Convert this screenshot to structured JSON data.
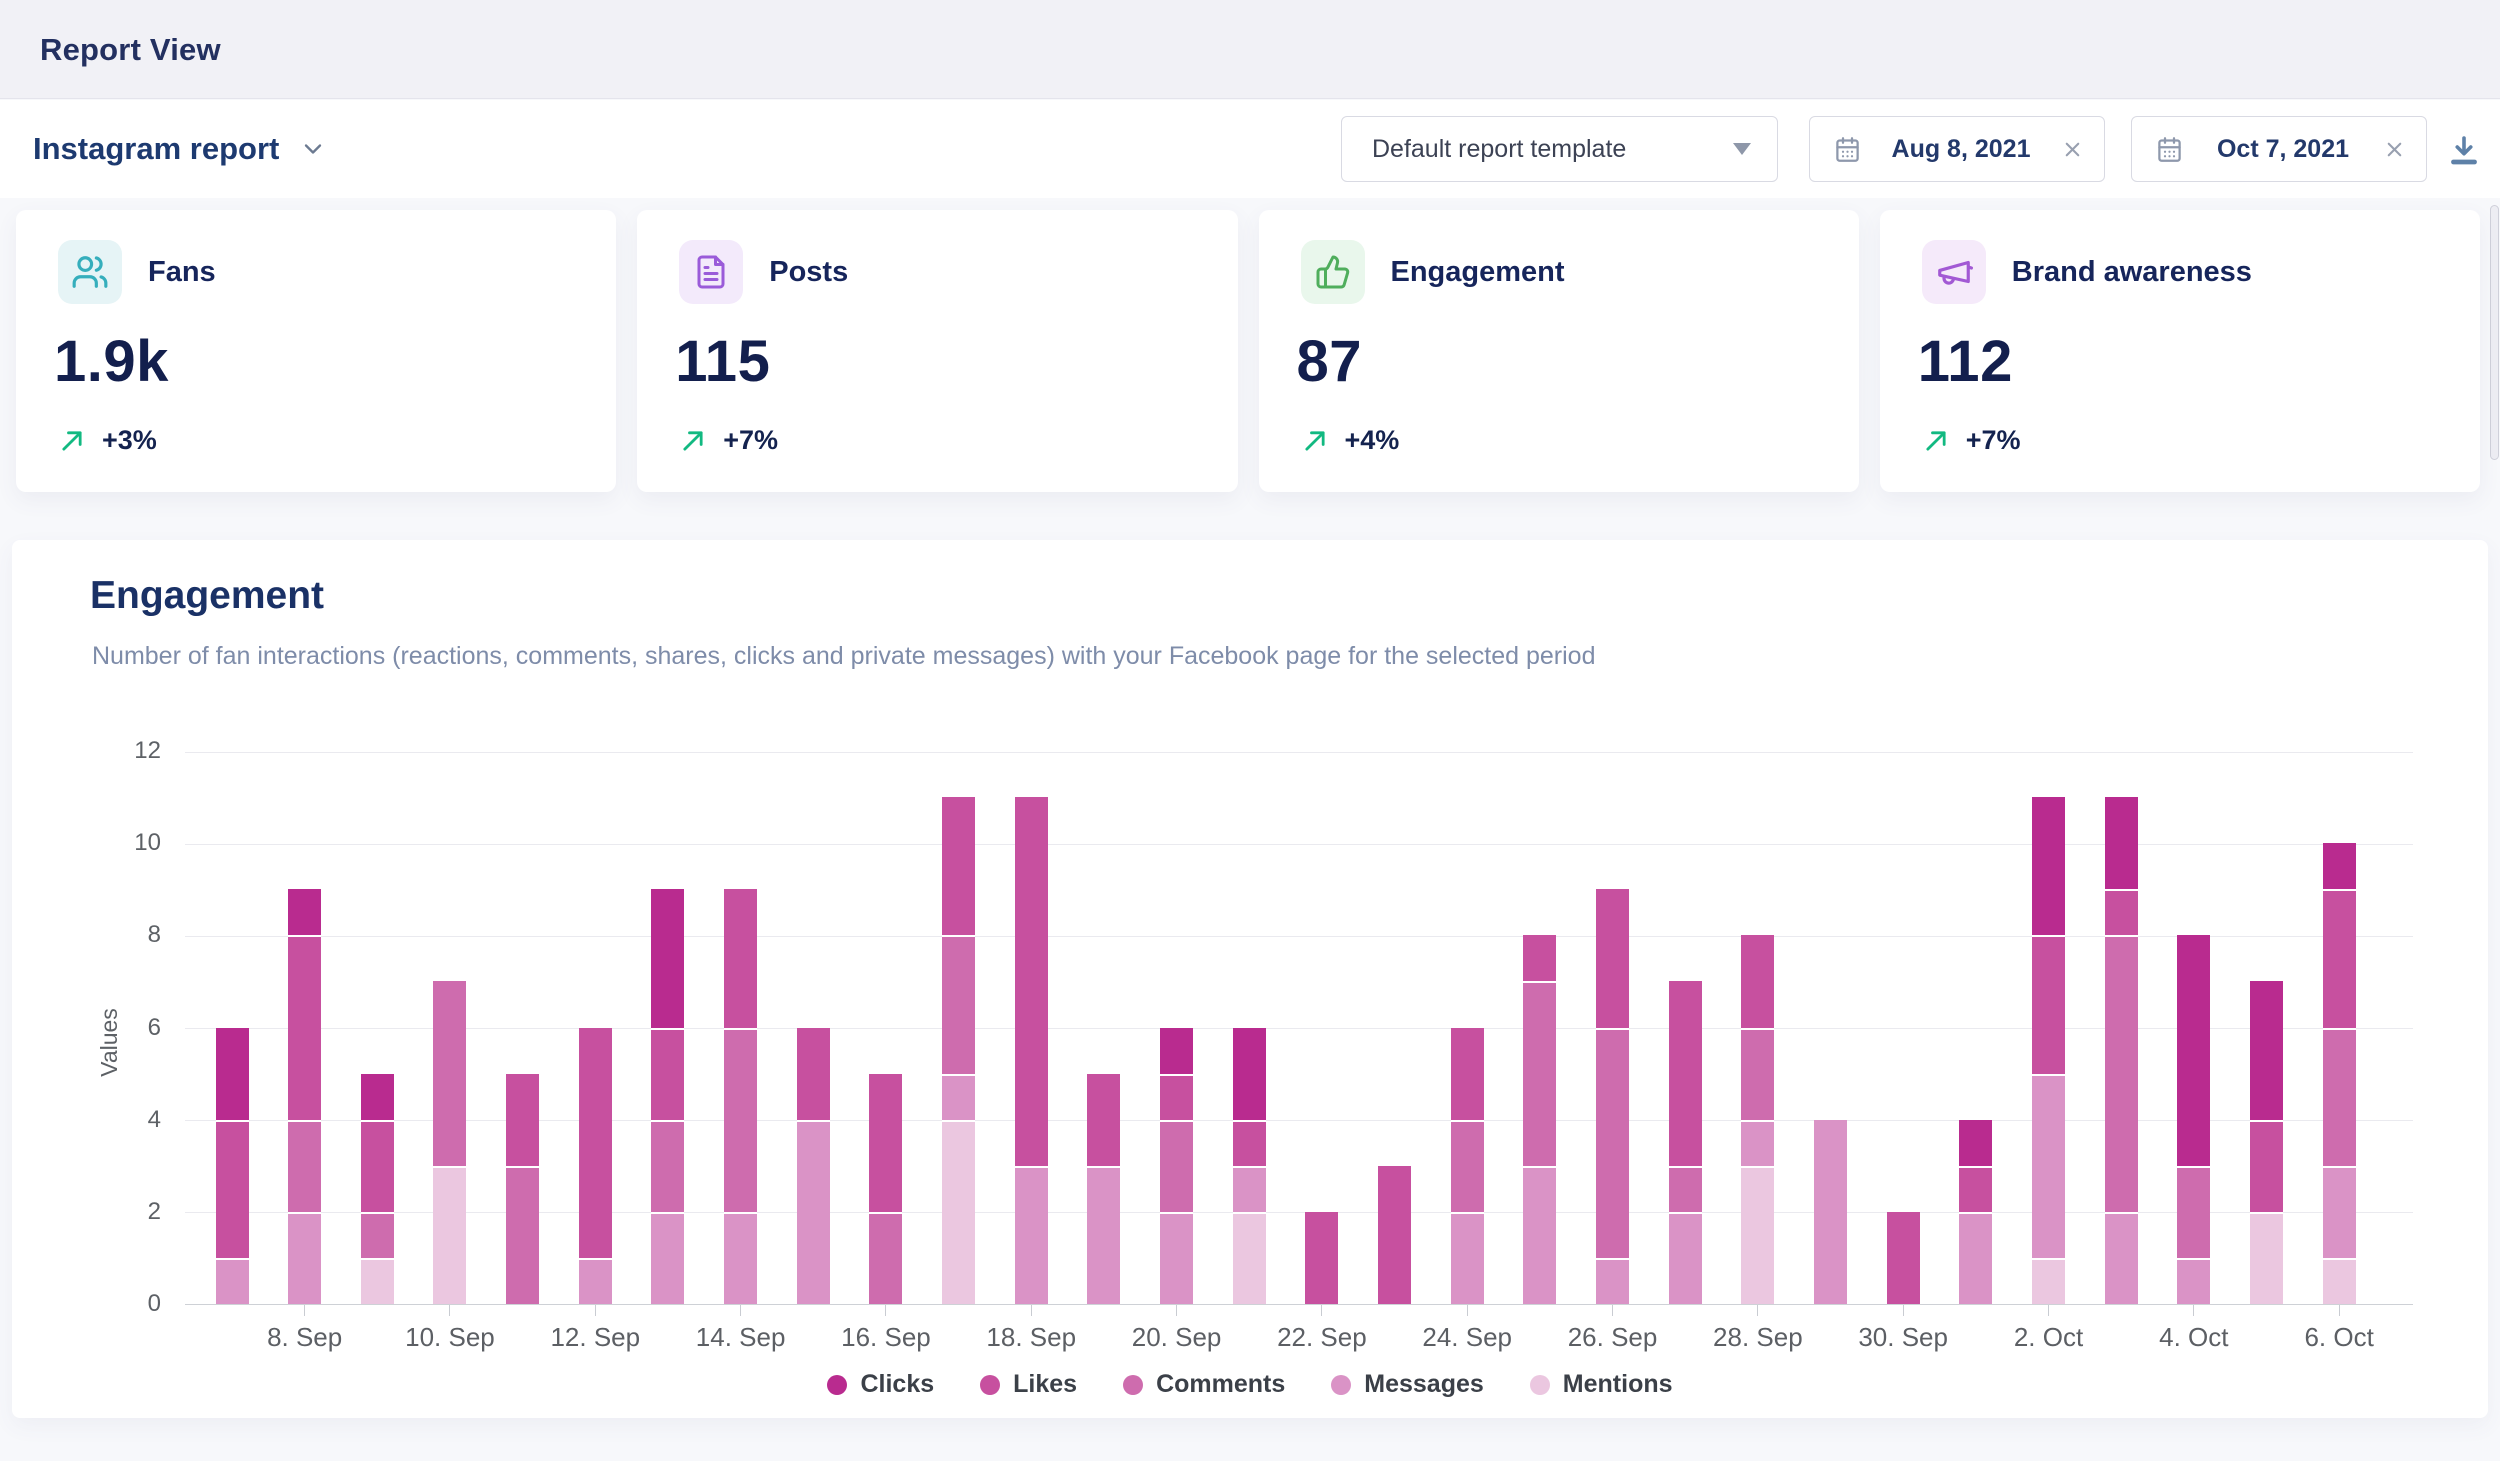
{
  "header": {
    "title": "Report View"
  },
  "toolbar": {
    "report_name": "Instagram report",
    "template_select": {
      "value": "Default report template"
    },
    "date_from": {
      "value": "Aug 8, 2021"
    },
    "date_to": {
      "value": "Oct 7, 2021"
    },
    "icons": {
      "report_chevron": "chevron-down-icon",
      "calendar": "calendar-icon",
      "clear": "close-icon",
      "download": "download-icon"
    }
  },
  "kpi_cards": [
    {
      "title": "Fans",
      "value": "1.9k",
      "delta": "+3%",
      "icon": "users-icon",
      "tile_bg": "#e6f4f6",
      "icon_color": "#35aebc"
    },
    {
      "title": "Posts",
      "value": "115",
      "delta": "+7%",
      "icon": "document-icon",
      "tile_bg": "#f3eafb",
      "icon_color": "#9a5bd9"
    },
    {
      "title": "Engagement",
      "value": "87",
      "delta": "+4%",
      "icon": "thumbs-up-icon",
      "tile_bg": "#e9f7ec",
      "icon_color": "#4fae5c"
    },
    {
      "title": "Brand awareness",
      "value": "112",
      "delta": "+7%",
      "icon": "megaphone-icon",
      "tile_bg": "#f5eafa",
      "icon_color": "#a259d4"
    }
  ],
  "delta_arrow_color": "#12b981",
  "chart_section": {
    "title": "Engagement",
    "subtitle": "Number of fan interactions (reactions, comments, shares, clicks and private messages) with your Facebook page for the selected period"
  },
  "chart_data": {
    "type": "bar",
    "stacked": true,
    "title": "Engagement",
    "xlabel": "",
    "ylabel": "Values",
    "ylim": [
      0,
      12
    ],
    "ytick_step": 2,
    "grid": true,
    "legend_position": "bottom",
    "categories": [
      "7. Sep",
      "8. Sep",
      "9. Sep",
      "10. Sep",
      "11. Sep",
      "12. Sep",
      "13. Sep",
      "14. Sep",
      "15. Sep",
      "16. Sep",
      "17. Sep",
      "18. Sep",
      "19. Sep",
      "20. Sep",
      "21. Sep",
      "22. Sep",
      "23. Sep",
      "24. Sep",
      "25. Sep",
      "26. Sep",
      "27. Sep",
      "28. Sep",
      "29. Sep",
      "30. Sep",
      "1. Oct",
      "2. Oct",
      "3. Oct",
      "4. Oct",
      "5. Oct",
      "6. Oct"
    ],
    "x_tick_labels": [
      "8. Sep",
      "10. Sep",
      "12. Sep",
      "14. Sep",
      "16. Sep",
      "18. Sep",
      "20. Sep",
      "22. Sep",
      "24. Sep",
      "26. Sep",
      "28. Sep",
      "30. Sep",
      "2. Oct",
      "4. Oct",
      "6. Oct"
    ],
    "series": [
      {
        "name": "Clicks",
        "color": "#b92b8f",
        "values": [
          2,
          1,
          1,
          0,
          0,
          0,
          3,
          0,
          0,
          0,
          0,
          0,
          0,
          1,
          2,
          0,
          0,
          0,
          0,
          0,
          0,
          0,
          0,
          0,
          1,
          3,
          2,
          5,
          3,
          1
        ]
      },
      {
        "name": "Likes",
        "color": "#c7509f",
        "values": [
          3,
          4,
          2,
          0,
          2,
          5,
          2,
          3,
          2,
          3,
          3,
          8,
          2,
          1,
          1,
          2,
          3,
          2,
          1,
          3,
          4,
          2,
          0,
          2,
          1,
          3,
          1,
          0,
          2,
          3
        ]
      },
      {
        "name": "Comments",
        "color": "#ce6cae",
        "values": [
          0,
          2,
          1,
          4,
          3,
          0,
          2,
          4,
          0,
          2,
          3,
          0,
          0,
          2,
          0,
          0,
          0,
          2,
          4,
          5,
          1,
          2,
          0,
          0,
          0,
          0,
          6,
          2,
          0,
          3
        ]
      },
      {
        "name": "Messages",
        "color": "#da93c6",
        "values": [
          1,
          2,
          0,
          0,
          0,
          1,
          2,
          2,
          4,
          0,
          1,
          3,
          3,
          2,
          1,
          0,
          0,
          2,
          3,
          1,
          2,
          1,
          4,
          0,
          2,
          4,
          2,
          1,
          0,
          2
        ]
      },
      {
        "name": "Mentions",
        "color": "#ebc7e0",
        "values": [
          0,
          0,
          1,
          3,
          0,
          0,
          0,
          0,
          0,
          0,
          4,
          0,
          0,
          0,
          2,
          0,
          0,
          0,
          0,
          0,
          0,
          3,
          0,
          0,
          0,
          1,
          0,
          0,
          2,
          1
        ]
      }
    ],
    "stack_order_bottom_to_top": [
      "Mentions",
      "Messages",
      "Comments",
      "Likes",
      "Clicks"
    ]
  }
}
